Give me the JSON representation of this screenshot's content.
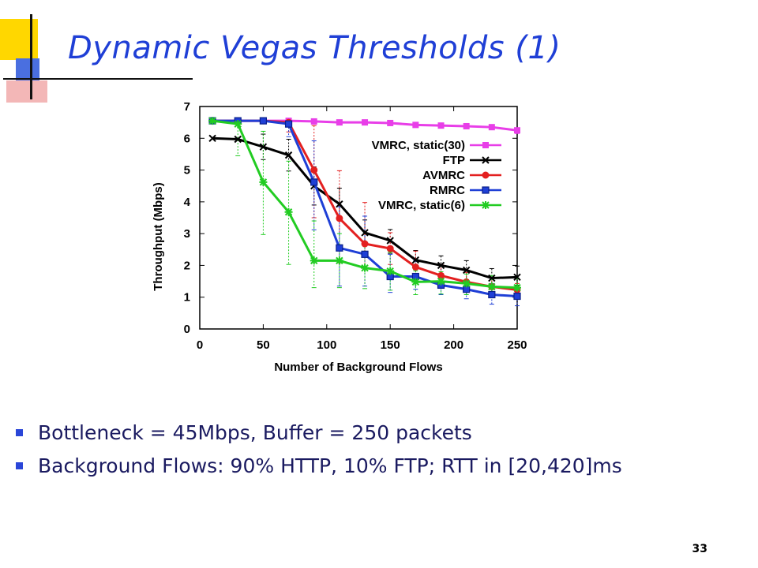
{
  "slide": {
    "title": "Dynamic Vegas Thresholds (1)",
    "bullets": [
      "Bottleneck = 45Mbps, Buffer = 250 packets",
      "Background Flows: 90% HTTP, 10% FTP; RTT in [20,420]ms"
    ],
    "page_number": "33",
    "title_color": "#1f3fd6",
    "bullet_color": "#2a46d8"
  },
  "chart_data": {
    "type": "line",
    "title": "",
    "xlabel": "Number of Background Flows",
    "ylabel": "Throughput (Mbps)",
    "xlim": [
      0,
      250
    ],
    "ylim": [
      0,
      7
    ],
    "x_ticks": [
      0,
      50,
      100,
      150,
      200,
      250
    ],
    "y_ticks": [
      0,
      1,
      2,
      3,
      4,
      5,
      6,
      7
    ],
    "grid": false,
    "legend_position": "top-right",
    "x": [
      10,
      30,
      50,
      70,
      90,
      110,
      130,
      150,
      170,
      190,
      210,
      230,
      250
    ],
    "series": [
      {
        "name": "VMRC, static(30)",
        "color": "#e83ee8",
        "marker": "square",
        "values": [
          6.55,
          6.55,
          6.55,
          6.55,
          6.53,
          6.5,
          6.5,
          6.48,
          6.42,
          6.4,
          6.38,
          6.35,
          6.25
        ],
        "err_low": [
          0,
          0,
          0,
          0,
          0,
          0,
          0,
          0,
          0.05,
          0,
          0,
          0,
          0.1
        ],
        "err_high": [
          0,
          0,
          0,
          0,
          0,
          0,
          0,
          0,
          0,
          0,
          0,
          0,
          0.05
        ]
      },
      {
        "name": "FTP",
        "color": "#000000",
        "marker": "x",
        "values": [
          6.0,
          5.97,
          5.73,
          5.47,
          4.5,
          3.93,
          3.03,
          2.78,
          2.17,
          2.0,
          1.85,
          1.6,
          1.63
        ],
        "err_low": [
          0,
          0,
          0.4,
          0.5,
          0.6,
          0.5,
          0.4,
          0.4,
          0.3,
          0.3,
          0.3,
          0.25,
          0.25
        ],
        "err_high": [
          0,
          0,
          0.4,
          0.5,
          0.6,
          0.5,
          0.4,
          0.35,
          0.3,
          0.3,
          0.3,
          0.3,
          0.35
        ]
      },
      {
        "name": "AVMRC",
        "color": "#e32020",
        "marker": "circle",
        "values": [
          6.55,
          6.55,
          6.55,
          6.5,
          5.0,
          3.48,
          2.68,
          2.53,
          1.95,
          1.68,
          1.48,
          1.33,
          1.23
        ],
        "err_low": [
          0,
          0,
          0,
          0.3,
          1.5,
          1.4,
          0.8,
          0.5,
          0.4,
          0.35,
          0.3,
          0.3,
          0.2
        ],
        "err_high": [
          0,
          0,
          0,
          0.05,
          1.4,
          1.5,
          1.3,
          0.5,
          0.5,
          0.35,
          0.3,
          0.3,
          0.2
        ]
      },
      {
        "name": "RMRC",
        "color": "#1f3fd6",
        "marker": "square-open",
        "values": [
          6.55,
          6.55,
          6.55,
          6.45,
          4.62,
          2.55,
          2.35,
          1.65,
          1.65,
          1.38,
          1.25,
          1.08,
          1.03
        ],
        "err_low": [
          0,
          0,
          0,
          0.4,
          1.5,
          1.2,
          1.0,
          0.5,
          0.4,
          0.3,
          0.3,
          0.3,
          0.3
        ],
        "err_high": [
          0,
          0,
          0,
          0.1,
          1.3,
          1.3,
          1.2,
          0.7,
          0.5,
          0.35,
          0.3,
          0.35,
          0.3
        ]
      },
      {
        "name": "VMRC, static(6)",
        "color": "#22cc22",
        "marker": "star",
        "values": [
          6.55,
          6.45,
          4.62,
          3.68,
          2.15,
          2.15,
          1.92,
          1.82,
          1.48,
          1.5,
          1.43,
          1.33,
          1.3
        ],
        "err_low": [
          0,
          1.0,
          1.65,
          1.65,
          0.85,
          0.85,
          0.65,
          0.6,
          0.4,
          0.4,
          0.35,
          0.35,
          0.3
        ],
        "err_high": [
          0,
          0.1,
          1.6,
          1.6,
          1.25,
          0.85,
          0.75,
          0.6,
          0.35,
          0.3,
          0.3,
          0.35,
          0.3
        ]
      }
    ]
  }
}
